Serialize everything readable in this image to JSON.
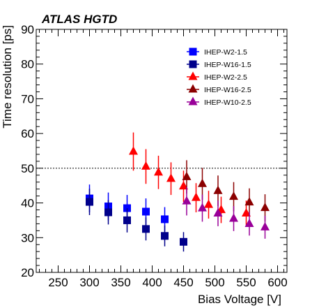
{
  "chart_data": {
    "type": "scatter",
    "title": "ATLAS HGTD",
    "xlabel": "Bias Voltage [V]",
    "ylabel": "Time resolution [ps]",
    "xlim": [
      215,
      615
    ],
    "ylim": [
      20,
      90
    ],
    "xticks": [
      250,
      300,
      350,
      400,
      450,
      500,
      550,
      600
    ],
    "yticks": [
      20,
      30,
      40,
      50,
      60,
      70,
      80,
      90
    ],
    "reference_line": {
      "y": 50,
      "style": "dotted"
    },
    "legend_position": "top-right",
    "series": [
      {
        "name": "IHEP-W2-1.5",
        "marker": "square",
        "color": "#0000ff",
        "points": [
          {
            "x": 300,
            "y": 41.3,
            "err": 4.0
          },
          {
            "x": 330,
            "y": 39.0,
            "err": 4.0
          },
          {
            "x": 360,
            "y": 38.5,
            "err": 3.8
          },
          {
            "x": 390,
            "y": 37.5,
            "err": 3.8
          },
          {
            "x": 420,
            "y": 35.3,
            "err": 3.5
          }
        ]
      },
      {
        "name": "IHEP-W16-1.5",
        "marker": "square",
        "color": "#00008b",
        "points": [
          {
            "x": 300,
            "y": 40.3,
            "err": 3.8
          },
          {
            "x": 330,
            "y": 37.3,
            "err": 3.5
          },
          {
            "x": 360,
            "y": 35.0,
            "err": 3.5
          },
          {
            "x": 390,
            "y": 32.5,
            "err": 3.3
          },
          {
            "x": 420,
            "y": 30.5,
            "err": 3.0
          },
          {
            "x": 450,
            "y": 28.8,
            "err": 2.8
          }
        ]
      },
      {
        "name": "IHEP-W2-2.5",
        "marker": "triangle",
        "color": "#ff0000",
        "points": [
          {
            "x": 370,
            "y": 54.8,
            "err": 5.5
          },
          {
            "x": 390,
            "y": 50.5,
            "err": 5.0
          },
          {
            "x": 410,
            "y": 48.8,
            "err": 4.8
          },
          {
            "x": 430,
            "y": 47.0,
            "err": 4.7
          },
          {
            "x": 450,
            "y": 44.8,
            "err": 4.5
          },
          {
            "x": 470,
            "y": 41.5,
            "err": 4.2
          },
          {
            "x": 490,
            "y": 39.5,
            "err": 4.0
          },
          {
            "x": 510,
            "y": 38.0,
            "err": 3.8
          },
          {
            "x": 550,
            "y": 37.0,
            "err": 3.7
          }
        ]
      },
      {
        "name": "IHEP-W16-2.5",
        "marker": "triangle",
        "color": "#8b0000",
        "points": [
          {
            "x": 455,
            "y": 47.5,
            "err": 4.8
          },
          {
            "x": 480,
            "y": 45.5,
            "err": 4.6
          },
          {
            "x": 505,
            "y": 43.5,
            "err": 4.4
          },
          {
            "x": 530,
            "y": 41.8,
            "err": 4.2
          },
          {
            "x": 555,
            "y": 40.2,
            "err": 4.0
          },
          {
            "x": 580,
            "y": 38.6,
            "err": 3.9
          }
        ]
      },
      {
        "name": "IHEP-W10-2.5",
        "marker": "triangle",
        "color": "#990099",
        "points": [
          {
            "x": 455,
            "y": 40.5,
            "err": 4.1
          },
          {
            "x": 480,
            "y": 38.5,
            "err": 3.9
          },
          {
            "x": 505,
            "y": 37.0,
            "err": 3.7
          },
          {
            "x": 530,
            "y": 35.5,
            "err": 3.6
          },
          {
            "x": 555,
            "y": 34.0,
            "err": 3.4
          },
          {
            "x": 580,
            "y": 33.0,
            "err": 3.3
          }
        ]
      }
    ]
  }
}
